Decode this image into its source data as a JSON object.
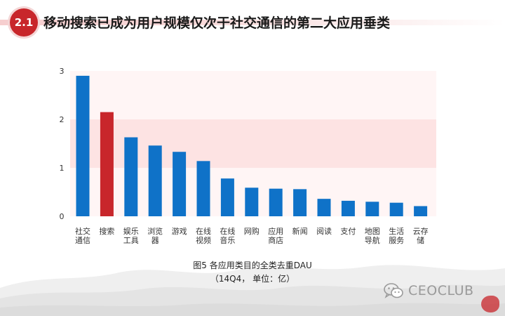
{
  "header": {
    "section_number": "2.1",
    "title": "移动搜索已成为用户规模仅次于社交通信的第二大应用垂类"
  },
  "caption": {
    "line1": "图5 各应用类目的全类去重DAU",
    "line2": "（14Q4， 单位：亿）"
  },
  "watermark": {
    "brand": "CEOCLUB",
    "icon": "wechat-icon"
  },
  "colors": {
    "bar": "#0f72c8",
    "highlight_bar": "#c8262b",
    "band_light": "#fde3e3",
    "band_white": "#fff5f5",
    "accent": "#c8262b"
  },
  "chart_data": {
    "type": "bar",
    "categories": [
      [
        "社交",
        "通信"
      ],
      [
        "搜索"
      ],
      [
        "娱乐",
        "工具"
      ],
      [
        "浏览",
        "器"
      ],
      [
        "游戏"
      ],
      [
        "在线",
        "视频"
      ],
      [
        "在线",
        "音乐"
      ],
      [
        "网购"
      ],
      [
        "应用",
        "商店"
      ],
      [
        "新闻"
      ],
      [
        "阅读"
      ],
      [
        "支付"
      ],
      [
        "地图",
        "导航"
      ],
      [
        "生活",
        "服务"
      ],
      [
        "云存",
        "储"
      ]
    ],
    "values": [
      2.9,
      2.15,
      1.63,
      1.46,
      1.33,
      1.14,
      0.78,
      0.59,
      0.57,
      0.56,
      0.36,
      0.32,
      0.3,
      0.28,
      0.21
    ],
    "highlight_index": 1,
    "ylim": [
      0,
      3
    ],
    "yticks": [
      0,
      1,
      2,
      3
    ],
    "grid": false,
    "background_bands": true
  }
}
